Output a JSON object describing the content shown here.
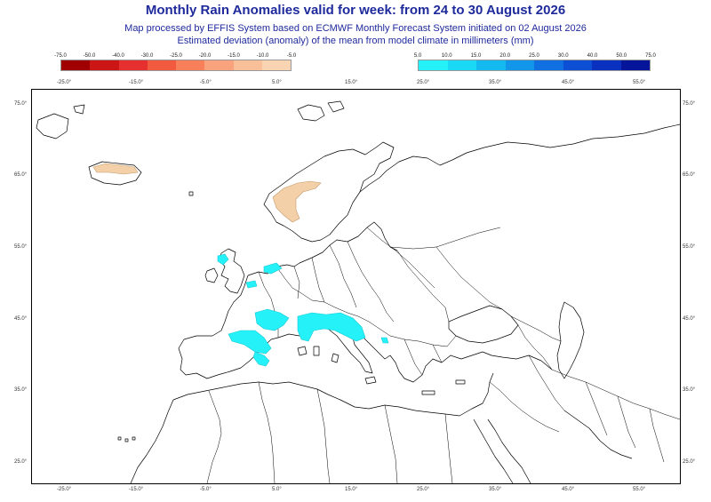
{
  "header": {
    "title": "Monthly Rain Anomalies valid for week: from 24 to 30 August 2026",
    "subtitle1": "Map processed by EFFIS System based on ECMWF Monthly Forecast System initiated on 02 August 2026",
    "subtitle2": "Estimated deviation (anomaly) of the mean from model climate in millimeters (mm)"
  },
  "legend_negative": {
    "labels": [
      "-75.0",
      "-50.0",
      "-40.0",
      "-30.0",
      "-25.0",
      "-20.0",
      "-15.0",
      "-10.0",
      "-5.0"
    ],
    "colors": [
      "#a00000",
      "#cc1515",
      "#e62f2f",
      "#f25a3f",
      "#f7805a",
      "#f9a27e",
      "#f9bf99",
      "#f8d4b2"
    ]
  },
  "legend_positive": {
    "labels": [
      "5.0",
      "10.0",
      "15.0",
      "20.0",
      "25.0",
      "30.0",
      "40.0",
      "50.0",
      "75.0"
    ],
    "colors": [
      "#24f2f8",
      "#19d9f5",
      "#14b9f0",
      "#1296ea",
      "#1070e2",
      "#0d4fd4",
      "#0a30c0",
      "#05159a"
    ]
  },
  "axes": {
    "top_lon": [
      "-25.0°",
      "-15.0°",
      "-5.0°",
      "5.0°",
      "15.0°",
      "25.0°",
      "35.0°",
      "45.0°",
      "55.0°"
    ],
    "bottom_lon": [
      "-25.0°",
      "-15.0°",
      "-5.0°",
      "5.0°",
      "15.0°",
      "25.0°",
      "35.0°",
      "45.0°",
      "55.0°"
    ],
    "left_lat": [
      "75.0°",
      "65.0°",
      "55.0°",
      "45.0°",
      "35.0°",
      "25.0°"
    ],
    "right_lat": [
      "75.0°",
      "65.0°",
      "55.0°",
      "45.0°",
      "35.0°",
      "25.0°"
    ]
  },
  "map_colors": {
    "border": "#000000",
    "dry_anomaly": "#f3d0a8",
    "wet_anomaly": "#24f2f8",
    "dry_outline": "#c49a6c",
    "wet_outline": "#1bc7d4"
  }
}
